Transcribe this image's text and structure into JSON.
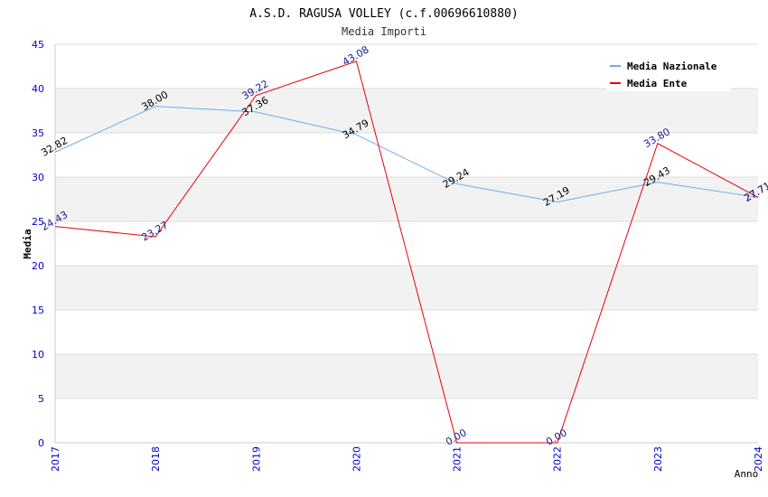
{
  "chart_data": {
    "type": "line",
    "title": "A.S.D. RAGUSA VOLLEY (c.f.00696610880)",
    "subtitle": "Media Importi",
    "xlabel": "Anno",
    "ylabel": "Media",
    "ylim": [
      0,
      45
    ],
    "yticks": [
      "0",
      "5",
      "10",
      "15",
      "20",
      "25",
      "30",
      "35",
      "40",
      "45"
    ],
    "categories": [
      "2017",
      "2018",
      "2019",
      "2020",
      "2021",
      "2022",
      "2023",
      "2024"
    ],
    "grid": true,
    "legend_position": "top-right",
    "series": [
      {
        "name": "Media Nazionale",
        "color": "#6aaee8",
        "values": [
          32.82,
          38.0,
          37.36,
          34.79,
          29.24,
          27.19,
          29.43,
          27.71
        ],
        "labels": [
          "32.82",
          "38.00",
          "37.36",
          "34.79",
          "29.24",
          "27.19",
          "29.43",
          "27.71"
        ],
        "label_color": "#000000"
      },
      {
        "name": "Media Ente",
        "color": "#e8000b",
        "values": [
          24.43,
          23.27,
          39.22,
          43.08,
          0.0,
          0.0,
          33.8,
          27.71
        ],
        "labels": [
          "24.43",
          "23.27",
          "39.22",
          "43.08",
          "0.00",
          "0.00",
          "33.80",
          "27.71"
        ],
        "label_color": "#1a1a8c"
      }
    ],
    "colors": {
      "axis_text": "#0000cc",
      "band": "#f2f2f2",
      "gridline": "#dcdcdc",
      "axis_line": "#cccccc"
    }
  }
}
